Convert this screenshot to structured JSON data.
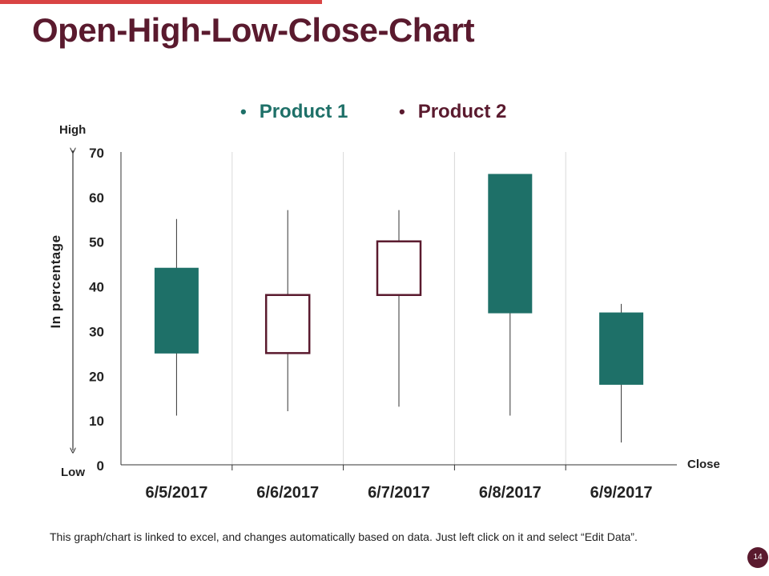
{
  "slide": {
    "title": "Open-High-Low-Close-Chart",
    "footnote": "This graph/chart is linked to excel, and changes automatically based on data. Just left click on it and select “Edit Data”.",
    "page_number": "14",
    "accent_color": "#d94444",
    "title_color": "#5a1a2e"
  },
  "chart_data": {
    "type": "candlestick",
    "title": "",
    "ylabel": "In percentage",
    "xlabel": "",
    "ylim": [
      0,
      70
    ],
    "ytick_labels": [
      "0",
      "10",
      "20",
      "30",
      "40",
      "50",
      "60",
      "70"
    ],
    "axis_annotations": {
      "high": "High",
      "low": "Low",
      "close": "Close"
    },
    "legend": [
      {
        "name": "Product 1",
        "color": "#1e7068"
      },
      {
        "name": "Product 2",
        "color": "#5a1a2e"
      }
    ],
    "categories": [
      "6/5/2017",
      "6/6/2017",
      "6/7/2017",
      "6/8/2017",
      "6/9/2017"
    ],
    "candles": [
      {
        "date": "6/5/2017",
        "open": 25,
        "high": 55,
        "low": 11,
        "close": 44,
        "direction": "up",
        "color": "#1e7068"
      },
      {
        "date": "6/6/2017",
        "open": 38,
        "high": 57,
        "low": 12,
        "close": 25,
        "direction": "down",
        "color": "#5a1a2e"
      },
      {
        "date": "6/7/2017",
        "open": 50,
        "high": 57,
        "low": 13,
        "close": 38,
        "direction": "down",
        "color": "#5a1a2e"
      },
      {
        "date": "6/8/2017",
        "open": 34,
        "high": 65,
        "low": 11,
        "close": 65,
        "direction": "up",
        "color": "#1e7068"
      },
      {
        "date": "6/9/2017",
        "open": 18,
        "high": 36,
        "low": 5,
        "close": 34,
        "direction": "up",
        "color": "#1e7068"
      }
    ]
  }
}
